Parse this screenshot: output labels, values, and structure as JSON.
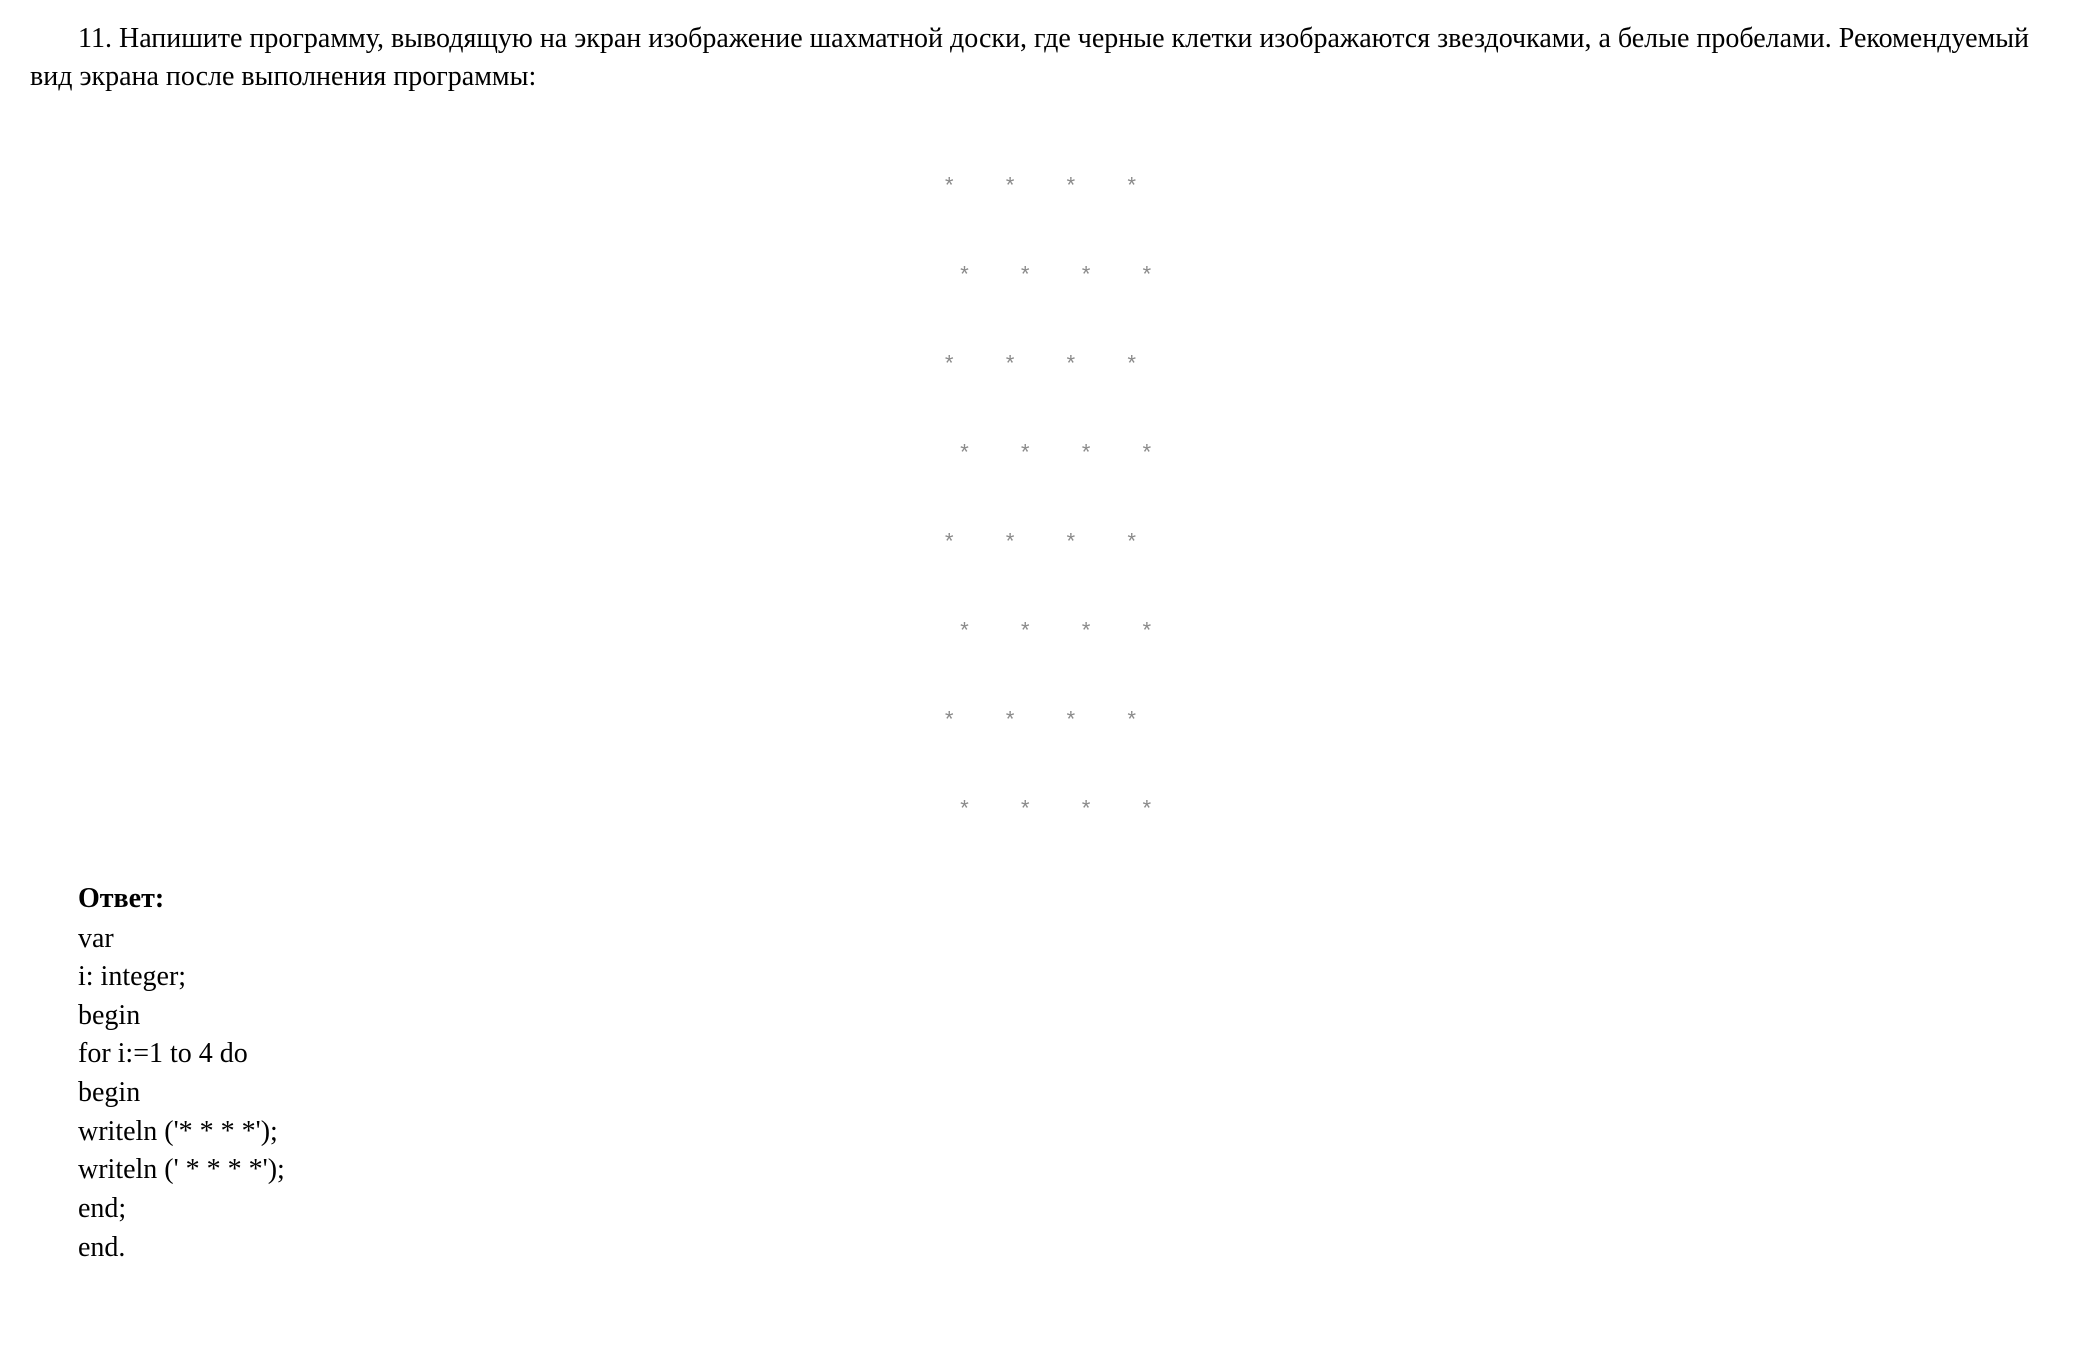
{
  "question": {
    "number": "11.",
    "text": "Напишите программу, выводящую на экран изображение шахматной доски, где черные клетки изображаются звездочками, а белые пробелами. Рекомендуемый вид экрана после выполнения программы:"
  },
  "chessboard": {
    "rows": [
      "*   *   *   *",
      "  *   *   *   *",
      "*   *   *   *",
      "  *   *   *   *",
      "*   *   *   *",
      "  *   *   *   *",
      "*   *   *   *",
      "  *   *   *   *"
    ],
    "text_color": "#8a8a8a",
    "background_color": "#ffffff",
    "font_family": "Courier New",
    "font_size_pt": 16
  },
  "answer": {
    "label": "Ответ:",
    "code_lines": [
      "var",
      "i: integer;",
      "begin",
      "for i:=1 to 4 do",
      "begin",
      "writeln ('* * * *');",
      "writeln (' * * * *');",
      "end;",
      "end."
    ]
  },
  "typography": {
    "body_font_family": "Times New Roman",
    "body_font_size_pt": 21,
    "body_color": "#000000",
    "bold_weight": 700
  },
  "colors": {
    "background": "#ffffff",
    "text": "#000000",
    "output_text": "#8a8a8a"
  }
}
